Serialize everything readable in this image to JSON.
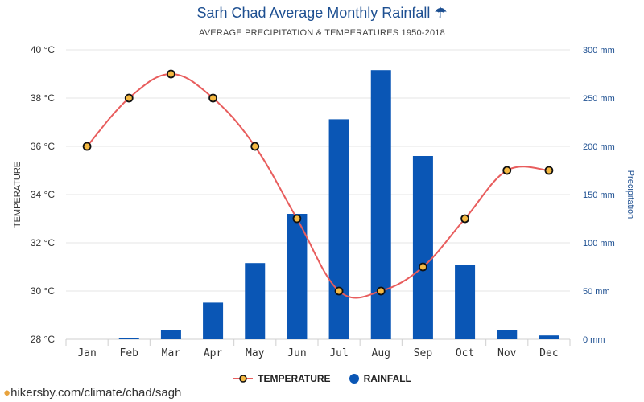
{
  "title": "Sarh Chad Average Monthly Rainfall",
  "title_icon": "umbrella-icon",
  "subtitle": "AVERAGE PRECIPITATION & TEMPERATURES 1950-2018",
  "source_url": "hikersby.com/climate/chad/sagh",
  "colors": {
    "temperature_line": "#e85d5d",
    "temperature_marker_fill": "#f5b942",
    "rainfall_bar": "#0a56b5",
    "title": "#1d4f91",
    "right_axis": "#1d4f91"
  },
  "chart_data": {
    "type": "bar",
    "categories": [
      "Jan",
      "Feb",
      "Mar",
      "Apr",
      "May",
      "Jun",
      "Jul",
      "Aug",
      "Sep",
      "Oct",
      "Nov",
      "Dec"
    ],
    "series": [
      {
        "name": "TEMPERATURE",
        "kind": "line",
        "axis": "left",
        "values": [
          36,
          38,
          39,
          38,
          36,
          33,
          30,
          30,
          31,
          33,
          35,
          35
        ]
      },
      {
        "name": "RAINFALL",
        "kind": "bar",
        "axis": "right",
        "values": [
          0,
          1,
          10,
          38,
          79,
          130,
          228,
          279,
          190,
          77,
          10,
          4
        ]
      }
    ],
    "ylabel_left": "TEMPERATURE",
    "ylabel_right": "Precipitation",
    "ylim_left": [
      28,
      40
    ],
    "ylim_right": [
      0,
      300
    ],
    "left_ticks": [
      "28 °C",
      "30 °C",
      "32 °C",
      "34 °C",
      "36 °C",
      "38 °C",
      "40 °C"
    ],
    "right_ticks": [
      "0 mm",
      "50 mm",
      "100 mm",
      "150 mm",
      "200 mm",
      "250 mm",
      "300 mm"
    ],
    "grid": true,
    "legend_position": "bottom-center"
  }
}
